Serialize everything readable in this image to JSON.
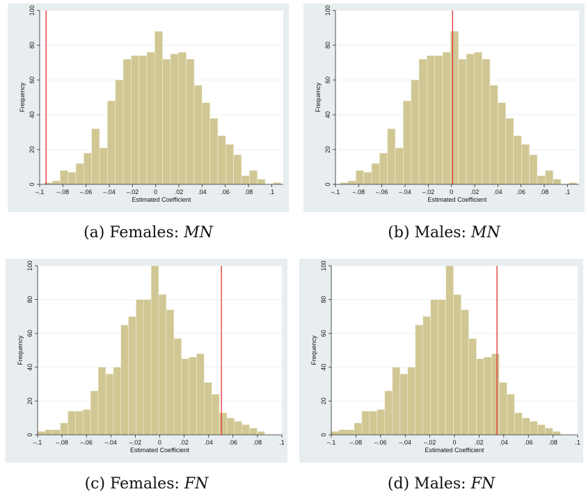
{
  "chart_data": [
    {
      "type": "bar",
      "subtype": "histogram",
      "caption_prefix": "(a) Females: ",
      "caption_var": "MN",
      "xlabel": "Estimated Coefficient",
      "ylabel": "Frequency",
      "xlim": [
        -0.1,
        0.11
      ],
      "ylim": [
        0,
        100
      ],
      "xticks": [
        -0.1,
        -0.08,
        -0.06,
        -0.04,
        -0.02,
        0,
        0.02,
        0.04,
        0.06,
        0.08,
        0.1
      ],
      "xtick_labels": [
        "–.1",
        "–.08",
        "–.06",
        "–.04",
        "–.02",
        "0",
        ".02",
        ".04",
        ".06",
        ".08",
        ".1"
      ],
      "yticks": [
        0,
        20,
        40,
        60,
        80,
        100
      ],
      "ytick_labels": [
        "0",
        "20",
        "40",
        "60",
        "80",
        "100"
      ],
      "bin_start": -0.096,
      "bin_width": 0.0068,
      "values": [
        1,
        2,
        8,
        7,
        12,
        18,
        32,
        21,
        48,
        60,
        72,
        74,
        74,
        76,
        88,
        72,
        75,
        76,
        72,
        57,
        47,
        38,
        28,
        23,
        17,
        5,
        8,
        3,
        0,
        1
      ],
      "reference_line": -0.0945,
      "bar_color": "#d0c794",
      "bar_edge": "#f3efdc",
      "line_color": "#e03030",
      "background": "#e8eef0"
    },
    {
      "type": "bar",
      "subtype": "histogram",
      "caption_prefix": "(b) Males: ",
      "caption_var": "MN",
      "xlabel": "Estimated Coefficient",
      "ylabel": "Frequency",
      "xlim": [
        -0.1,
        0.11
      ],
      "ylim": [
        0,
        100
      ],
      "xticks": [
        -0.1,
        -0.08,
        -0.06,
        -0.04,
        -0.02,
        0,
        0.02,
        0.04,
        0.06,
        0.08,
        0.1
      ],
      "xtick_labels": [
        "–.1",
        "–.08",
        "–.06",
        "–.04",
        "–.02",
        "0",
        ".02",
        ".04",
        ".06",
        ".08",
        ".1"
      ],
      "yticks": [
        0,
        20,
        40,
        60,
        80,
        100
      ],
      "ytick_labels": [
        "0",
        "20",
        "40",
        "60",
        "80",
        "100"
      ],
      "bin_start": -0.096,
      "bin_width": 0.0068,
      "values": [
        1,
        2,
        8,
        7,
        12,
        18,
        32,
        21,
        48,
        60,
        72,
        74,
        74,
        76,
        88,
        72,
        75,
        76,
        72,
        57,
        47,
        38,
        28,
        23,
        17,
        5,
        8,
        3,
        0,
        1
      ],
      "reference_line": 0.001,
      "bar_color": "#d0c794",
      "bar_edge": "#f3efdc",
      "line_color": "#e03030",
      "background": "#e8eef0"
    },
    {
      "type": "bar",
      "subtype": "histogram",
      "caption_prefix": "(c) Females: ",
      "caption_var": "FN",
      "xlabel": "Estimated Coefficient",
      "ylabel": "Frequency",
      "xlim": [
        -0.1,
        0.1
      ],
      "ylim": [
        0,
        100
      ],
      "xticks": [
        -0.1,
        -0.08,
        -0.06,
        -0.04,
        -0.02,
        0,
        0.02,
        0.04,
        0.06,
        0.08,
        0.1
      ],
      "xtick_labels": [
        "–.1",
        "–.08",
        "–.06",
        "–.04",
        "–.02",
        "0",
        ".02",
        ".04",
        ".06",
        ".08",
        ".1"
      ],
      "yticks": [
        0,
        20,
        40,
        60,
        80,
        100
      ],
      "ytick_labels": [
        "0",
        "20",
        "40",
        "60",
        "80",
        "100"
      ],
      "bin_start": -0.1,
      "bin_width": 0.0062,
      "values": [
        2,
        3,
        3,
        7,
        14,
        14,
        15,
        26,
        40,
        36,
        40,
        65,
        70,
        80,
        80,
        100,
        83,
        74,
        57,
        45,
        46,
        48,
        31,
        24,
        13,
        10,
        8,
        6,
        4,
        2
      ],
      "reference_line": 0.0505,
      "bar_color": "#d0c794",
      "bar_edge": "#f3efdc",
      "line_color": "#e03030",
      "background": "#e8eef0"
    },
    {
      "type": "bar",
      "subtype": "histogram",
      "caption_prefix": "(d) Males: ",
      "caption_var": "FN",
      "xlabel": "Estimated Coefficient",
      "ylabel": "Frequency",
      "xlim": [
        -0.1,
        0.1
      ],
      "ylim": [
        0,
        100
      ],
      "xticks": [
        -0.1,
        -0.08,
        -0.06,
        -0.04,
        -0.02,
        0,
        0.02,
        0.04,
        0.06,
        0.08,
        0.1
      ],
      "xtick_labels": [
        "–.1",
        "–.08",
        "–.06",
        "–.04",
        "–.02",
        "0",
        ".02",
        ".04",
        ".06",
        ".08",
        ".1"
      ],
      "yticks": [
        0,
        20,
        40,
        60,
        80,
        100
      ],
      "ytick_labels": [
        "0",
        "20",
        "40",
        "60",
        "80",
        "100"
      ],
      "bin_start": -0.1,
      "bin_width": 0.0062,
      "values": [
        2,
        3,
        3,
        7,
        14,
        14,
        15,
        26,
        40,
        36,
        40,
        65,
        70,
        80,
        80,
        100,
        83,
        74,
        57,
        45,
        46,
        48,
        31,
        24,
        13,
        10,
        8,
        6,
        4,
        2
      ],
      "reference_line": 0.0345,
      "bar_color": "#d0c794",
      "bar_edge": "#f3efdc",
      "line_color": "#e03030",
      "background": "#e8eef0"
    }
  ]
}
